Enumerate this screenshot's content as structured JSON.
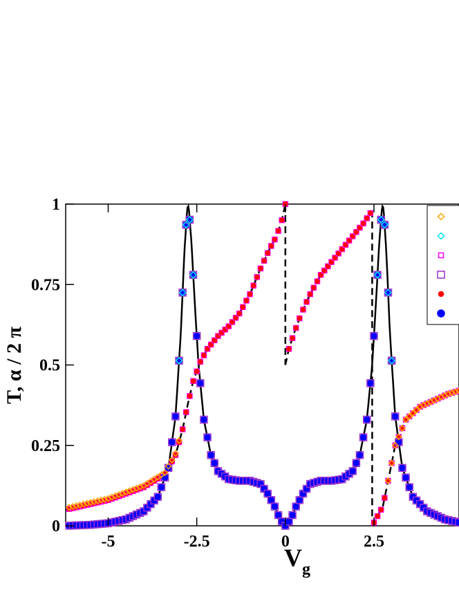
{
  "chart_data": {
    "type": "line",
    "xlabel": "V",
    "xlabel_sub": "g",
    "ylabel": "T,  α / 2 π",
    "xlim": [
      -6.2,
      4.9
    ],
    "ylim": [
      0,
      1
    ],
    "x_ticks": [
      {
        "value": -5,
        "label": "-5"
      },
      {
        "value": -2.5,
        "label": "-2.5"
      },
      {
        "value": 0,
        "label": "0"
      },
      {
        "value": 2.5,
        "label": "2.5"
      }
    ],
    "y_ticks": [
      {
        "value": 0,
        "label": "0"
      },
      {
        "value": 0.25,
        "label": "0.25"
      },
      {
        "value": 0.5,
        "label": "0.5"
      },
      {
        "value": 0.75,
        "label": "0.75"
      },
      {
        "value": 1,
        "label": "1"
      }
    ],
    "grid": false,
    "legend": {
      "placement": "top-right",
      "markers": [
        {
          "shape": "diamond",
          "color": "#FFA500",
          "size": "small",
          "filled": false
        },
        {
          "shape": "diamond",
          "color": "#00E5EE",
          "size": "small",
          "filled": false
        },
        {
          "shape": "square",
          "color": "#FF00FF",
          "size": "small",
          "filled": false
        },
        {
          "shape": "square",
          "color": "#9932CC",
          "size": "large",
          "filled": false
        },
        {
          "shape": "circle",
          "color": "#FF0000",
          "size": "small",
          "filled": true
        },
        {
          "shape": "circle",
          "color": "#0000FF",
          "size": "large",
          "filled": true
        }
      ]
    },
    "series": [
      {
        "role": "transmission",
        "style": "solid",
        "color": "#000000",
        "description": "double-peak resonance curve",
        "x": [
          -6.2,
          -5.5,
          -5.0,
          -4.5,
          -4.0,
          -3.6,
          -3.3,
          -3.1,
          -2.95,
          -2.85,
          -2.78,
          -2.75,
          -2.72,
          -2.65,
          -2.55,
          -2.45,
          -2.3,
          -2.1,
          -1.9,
          -1.6,
          -1.3,
          -1.0,
          -0.7,
          -0.5,
          -0.3,
          -0.15,
          0.0
        ],
        "y": [
          0.0,
          0.003,
          0.008,
          0.02,
          0.045,
          0.09,
          0.18,
          0.34,
          0.6,
          0.85,
          0.97,
          1.0,
          0.98,
          0.88,
          0.68,
          0.5,
          0.33,
          0.22,
          0.17,
          0.145,
          0.14,
          0.14,
          0.13,
          0.1,
          0.06,
          0.02,
          0.0
        ]
      },
      {
        "role": "phase",
        "style": "dashed",
        "color": "#000000",
        "description": "phase / 2pi curve with jumps at V=0 and V=2.45",
        "x": [
          -6.2,
          -5.0,
          -4.0,
          -3.4,
          -3.1,
          -2.9,
          -2.75,
          -2.6,
          -2.4,
          -2.2,
          -1.9,
          -1.6,
          -1.3,
          -1.0,
          -0.7,
          -0.45,
          -0.25,
          -0.1,
          0.0
        ],
        "y": [
          0.05,
          0.08,
          0.12,
          0.16,
          0.22,
          0.3,
          0.38,
          0.45,
          0.51,
          0.55,
          0.59,
          0.62,
          0.66,
          0.72,
          0.8,
          0.86,
          0.9,
          0.95,
          1.0
        ]
      },
      {
        "role": "phase-after-zero",
        "style": "dashed",
        "color": "#000000",
        "x": [
          0.0,
          0.1,
          0.25,
          0.45,
          0.7,
          1.0,
          1.3,
          1.6,
          1.9,
          2.2,
          2.45
        ],
        "y": [
          0.5,
          0.55,
          0.6,
          0.66,
          0.72,
          0.78,
          0.82,
          0.86,
          0.9,
          0.94,
          0.98
        ]
      },
      {
        "role": "phase-after-resonance",
        "style": "dashed",
        "color": "#000000",
        "x": [
          2.45,
          2.75,
          2.9,
          3.1,
          3.4,
          3.8,
          4.2,
          4.6,
          4.9
        ],
        "y": [
          0.0,
          0.06,
          0.14,
          0.25,
          0.33,
          0.37,
          0.39,
          0.41,
          0.42
        ]
      }
    ],
    "scatter_series": [
      {
        "marker": "circle",
        "color": "#0000FF",
        "size": "large",
        "follows": "transmission"
      },
      {
        "marker": "square",
        "color": "#9932CC",
        "size": "large",
        "follows": "transmission"
      },
      {
        "marker": "circle",
        "color": "#FF0000",
        "size": "small",
        "follows": "phase"
      },
      {
        "marker": "square",
        "color": "#FF00FF",
        "size": "small",
        "follows": "phase"
      },
      {
        "marker": "diamond",
        "color": "#00E5EE",
        "size": "small",
        "follows": "resonance-peaks"
      },
      {
        "marker": "diamond",
        "color": "#FFA500",
        "size": "small",
        "follows": "phase-tails"
      }
    ]
  }
}
